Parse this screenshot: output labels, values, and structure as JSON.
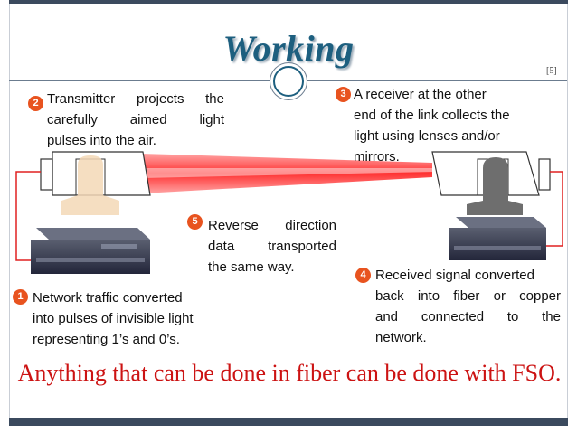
{
  "slide": {
    "title": "Working",
    "page_number": "[5]",
    "tagline": "Anything that can be done in fiber can be done with FSO."
  },
  "steps": [
    {
      "number": "1",
      "lines": [
        "Network traffic converted",
        "into pulses of invisible light",
        "representing 1’s and 0’s."
      ]
    },
    {
      "number": "2",
      "lines": [
        "Transmitter projects the",
        "carefully aimed light",
        "pulses into the air."
      ]
    },
    {
      "number": "3",
      "lines": [
        "A receiver at the other",
        "end of the link collects the",
        "light using lenses and/or",
        "mirrors."
      ]
    },
    {
      "number": "4",
      "lines": [
        "Received signal converted",
        "back into fiber or copper",
        "and connected to the",
        "network."
      ]
    },
    {
      "number": "5",
      "lines": [
        "Reverse direction",
        "data transported",
        "the same way."
      ]
    }
  ],
  "colors": {
    "title": "#1d5f7f",
    "badge": "#e8531f",
    "tagline": "#cc1313",
    "beam": "#ff2a2a",
    "frame": "#3b4a5e"
  }
}
